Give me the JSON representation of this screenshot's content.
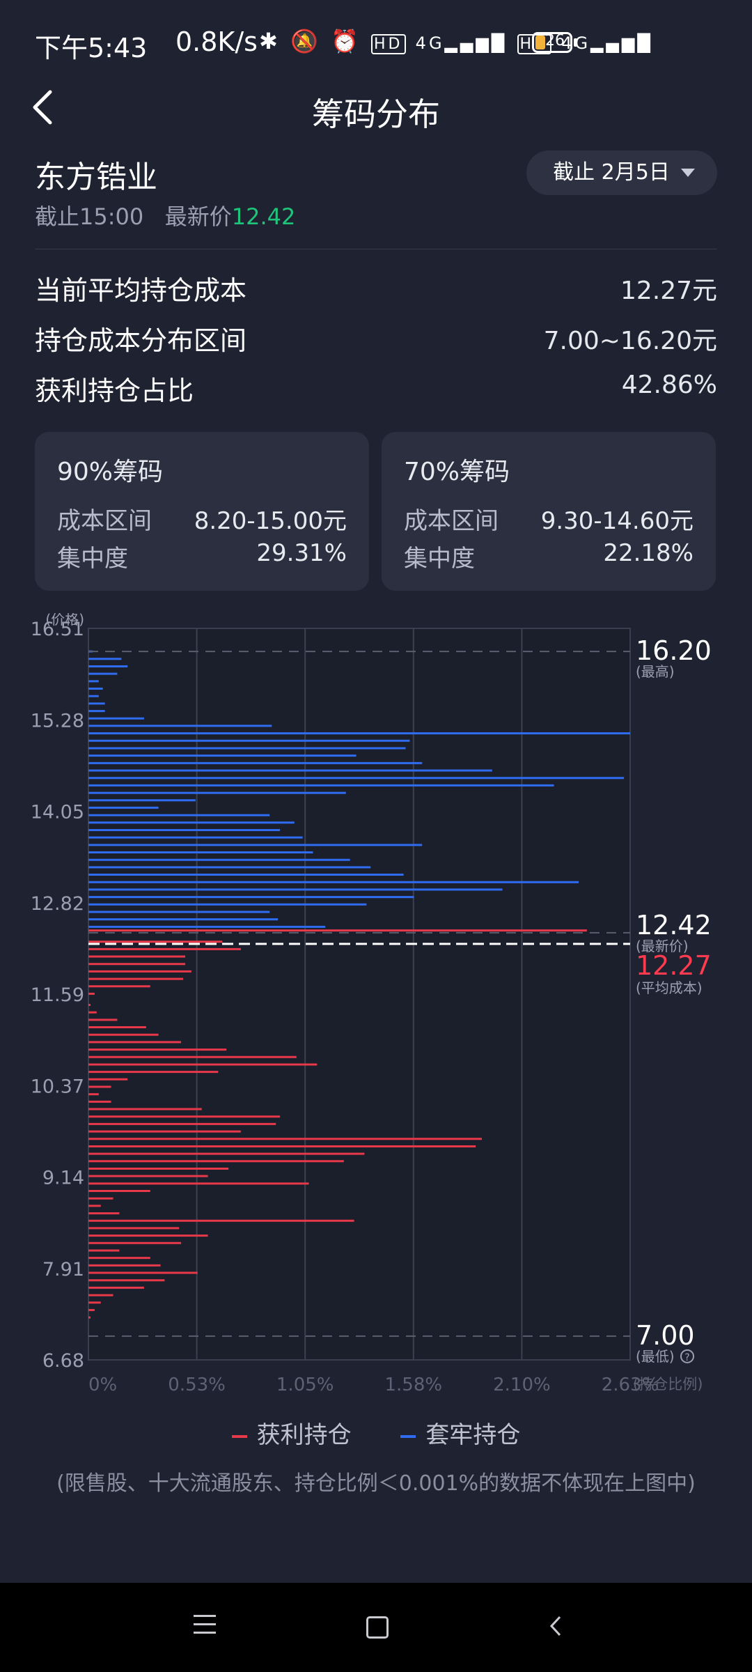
{
  "status_bar": {
    "time": "下午5:43",
    "net_speed": "0.8K/s",
    "icons": [
      "bluetooth-icon",
      "silent-icon",
      "alarm-icon",
      "hd-icon",
      "4g-signal-icon",
      "hd-icon",
      "4g-signal-icon"
    ],
    "battery": "26"
  },
  "header": {
    "title": "筹码分布"
  },
  "stock": {
    "name": "东方锆业",
    "cutoff_time": "截止15:00",
    "latest_label": "最新价",
    "latest_price": "12.42",
    "date_selector": "截止 2月5日"
  },
  "stats": [
    {
      "label": "当前平均持仓成本",
      "value": "12.27元"
    },
    {
      "label": "持仓成本分布区间",
      "value": "7.00~16.20元"
    },
    {
      "label": "获利持仓占比",
      "value": "42.86%"
    }
  ],
  "cards": [
    {
      "title": "90%筹码",
      "range_label": "成本区间",
      "range": "8.20-15.00元",
      "conc_label": "集中度",
      "conc": "29.31%"
    },
    {
      "title": "70%筹码",
      "range_label": "成本区间",
      "range": "9.30-14.60元",
      "conc_label": "集中度",
      "conc": "22.18%"
    }
  ],
  "chart_data": {
    "type": "bar",
    "orientation": "horizontal",
    "ylabel": "(价格)",
    "xlabel": "(持仓比例)",
    "y_ticks": [
      "16.51",
      "15.28",
      "14.05",
      "12.82",
      "11.59",
      "10.37",
      "9.14",
      "7.91",
      "6.68"
    ],
    "x_ticks": [
      "0%",
      "0.53%",
      "1.05%",
      "1.58%",
      "2.10%",
      "2.63%"
    ],
    "ylim": [
      6.68,
      16.51
    ],
    "xlim": [
      0,
      2.63
    ],
    "markers": [
      {
        "value": "16.20",
        "label": "(最高)",
        "price": 16.2,
        "color": "#ffffff"
      },
      {
        "value": "12.42",
        "label": "(最新价)",
        "price": 12.42,
        "color": "#ffffff"
      },
      {
        "value": "12.27",
        "label": "(平均成本)",
        "price": 12.27,
        "color": "#ff3b4f"
      },
      {
        "value": "7.00",
        "label": "(最低)",
        "price": 7.0,
        "color": "#ffffff"
      }
    ],
    "series": [
      {
        "name": "套牢持仓",
        "color": "#2f6cf0",
        "points": [
          [
            16.2,
            0.02
          ],
          [
            16.1,
            0.16
          ],
          [
            16.0,
            0.19
          ],
          [
            15.9,
            0.14
          ],
          [
            15.8,
            0.05
          ],
          [
            15.7,
            0.07
          ],
          [
            15.6,
            0.05
          ],
          [
            15.5,
            0.08
          ],
          [
            15.4,
            0.08
          ],
          [
            15.3,
            0.27
          ],
          [
            15.2,
            0.89
          ],
          [
            15.1,
            2.63
          ],
          [
            15.0,
            1.56
          ],
          [
            14.9,
            1.54
          ],
          [
            14.8,
            1.3
          ],
          [
            14.7,
            1.62
          ],
          [
            14.6,
            1.96
          ],
          [
            14.5,
            2.6
          ],
          [
            14.4,
            2.26
          ],
          [
            14.3,
            1.25
          ],
          [
            14.2,
            0.52
          ],
          [
            14.1,
            0.34
          ],
          [
            14.0,
            0.88
          ],
          [
            13.9,
            1.0
          ],
          [
            13.8,
            0.93
          ],
          [
            13.7,
            1.04
          ],
          [
            13.6,
            1.62
          ],
          [
            13.5,
            1.09
          ],
          [
            13.4,
            1.27
          ],
          [
            13.3,
            1.37
          ],
          [
            13.2,
            1.53
          ],
          [
            13.1,
            2.38
          ],
          [
            13.0,
            2.01
          ],
          [
            12.9,
            1.58
          ],
          [
            12.8,
            1.35
          ],
          [
            12.7,
            0.88
          ],
          [
            12.6,
            0.92
          ],
          [
            12.5,
            1.15
          ]
        ]
      },
      {
        "name": "获利持仓",
        "color": "#e8394a",
        "points": [
          [
            12.45,
            2.42
          ],
          [
            12.3,
            0.65
          ],
          [
            12.2,
            0.74
          ],
          [
            12.1,
            0.47
          ],
          [
            12.0,
            0.47
          ],
          [
            11.9,
            0.5
          ],
          [
            11.8,
            0.46
          ],
          [
            11.7,
            0.3
          ],
          [
            11.6,
            0.03
          ],
          [
            11.45,
            0.01
          ],
          [
            11.35,
            0.04
          ],
          [
            11.25,
            0.14
          ],
          [
            11.15,
            0.28
          ],
          [
            11.05,
            0.34
          ],
          [
            10.95,
            0.45
          ],
          [
            10.85,
            0.67
          ],
          [
            10.75,
            1.01
          ],
          [
            10.65,
            1.11
          ],
          [
            10.55,
            0.63
          ],
          [
            10.45,
            0.19
          ],
          [
            10.35,
            0.11
          ],
          [
            10.25,
            0.05
          ],
          [
            10.15,
            0.11
          ],
          [
            10.05,
            0.55
          ],
          [
            9.95,
            0.93
          ],
          [
            9.85,
            0.91
          ],
          [
            9.75,
            0.74
          ],
          [
            9.65,
            1.91
          ],
          [
            9.55,
            1.88
          ],
          [
            9.45,
            1.34
          ],
          [
            9.35,
            1.24
          ],
          [
            9.25,
            0.68
          ],
          [
            9.15,
            0.58
          ],
          [
            9.05,
            1.07
          ],
          [
            8.95,
            0.3
          ],
          [
            8.85,
            0.12
          ],
          [
            8.75,
            0.06
          ],
          [
            8.65,
            0.15
          ],
          [
            8.55,
            1.29
          ],
          [
            8.45,
            0.44
          ],
          [
            8.35,
            0.58
          ],
          [
            8.25,
            0.45
          ],
          [
            8.15,
            0.15
          ],
          [
            8.05,
            0.3
          ],
          [
            7.95,
            0.35
          ],
          [
            7.85,
            0.53
          ],
          [
            7.75,
            0.37
          ],
          [
            7.65,
            0.27
          ],
          [
            7.55,
            0.12
          ],
          [
            7.45,
            0.06
          ],
          [
            7.35,
            0.03
          ],
          [
            7.25,
            0.01
          ]
        ]
      }
    ]
  },
  "legend": {
    "profit": "获利持仓",
    "trapped": "套牢持仓",
    "profit_color": "#e8394a",
    "trapped_color": "#2f6cf0"
  },
  "note": "(限售股、十大流通股东、持仓比例＜0.001%的数据不体现在上图中)"
}
